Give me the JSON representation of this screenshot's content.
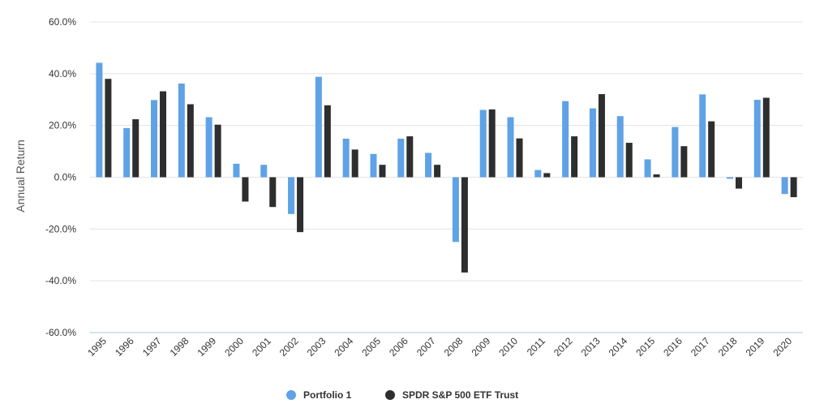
{
  "chart_data": {
    "type": "bar",
    "title": "",
    "xlabel": "",
    "ylabel": "Annual Return",
    "ylim": [
      -60,
      60
    ],
    "yticks": [
      60,
      40,
      20,
      0,
      -20,
      -40,
      -60
    ],
    "ytick_labels": [
      "60.0%",
      "40.0%",
      "20.0%",
      "0.0%",
      "-20.0%",
      "-40.0%",
      "-60.0%"
    ],
    "grid": true,
    "legend_position": "bottom-center",
    "categories": [
      "1995",
      "1996",
      "1997",
      "1998",
      "1999",
      "2000",
      "2001",
      "2002",
      "2003",
      "2004",
      "2005",
      "2006",
      "2007",
      "2008",
      "2009",
      "2010",
      "2011",
      "2012",
      "2013",
      "2014",
      "2015",
      "2016",
      "2017",
      "2018",
      "2019",
      "2020"
    ],
    "series": [
      {
        "name": "Portfolio 1",
        "color": "#5fa2e6",
        "values": [
          44.2,
          19.0,
          29.8,
          36.2,
          23.2,
          5.2,
          4.8,
          -14.2,
          38.8,
          14.9,
          9.0,
          14.9,
          9.4,
          -25.0,
          26.0,
          23.2,
          2.8,
          29.4,
          26.6,
          23.6,
          6.9,
          19.4,
          32.0,
          -0.6,
          29.9,
          -6.5
        ]
      },
      {
        "name": "SPDR S&P 500 ETF Trust",
        "color": "#2e2e2e",
        "values": [
          38.0,
          22.4,
          33.2,
          28.2,
          20.3,
          -9.4,
          -11.5,
          -21.2,
          27.8,
          10.7,
          4.8,
          15.8,
          4.8,
          -36.8,
          26.2,
          15.0,
          1.6,
          15.8,
          32.1,
          13.3,
          1.1,
          12.0,
          21.6,
          -4.4,
          30.7,
          -7.7
        ]
      }
    ]
  }
}
